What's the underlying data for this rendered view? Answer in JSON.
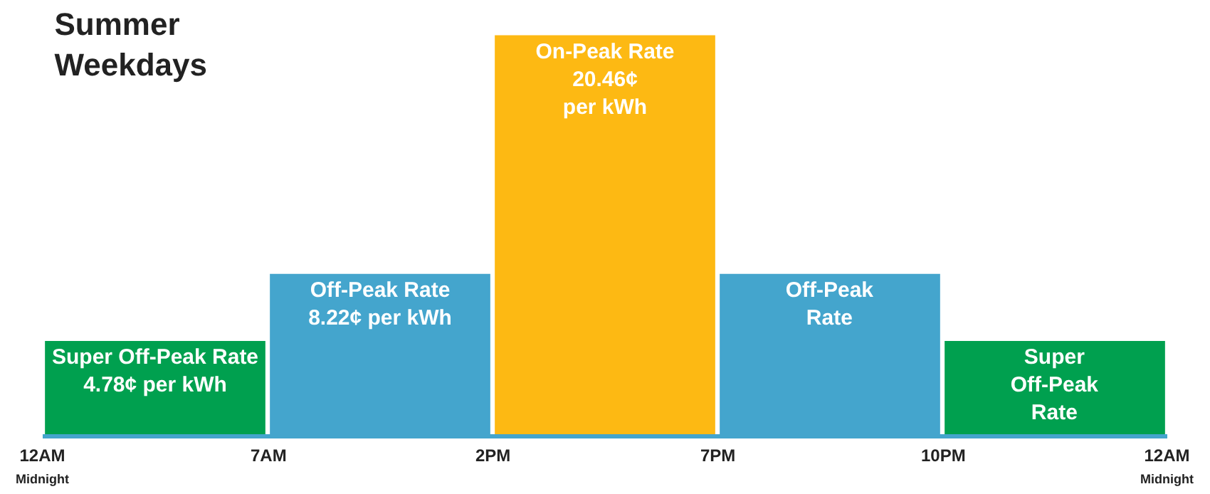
{
  "chart_data": {
    "type": "bar",
    "title": "Summer\nWeekdays",
    "categories": [
      null,
      null,
      null,
      null,
      null
    ],
    "values": [
      4.78,
      8.22,
      20.46,
      8.22,
      4.78
    ],
    "colors": [
      "#00a04f",
      "#44a5cd",
      "#fdb913",
      "#44a5cd",
      "#00a04f"
    ],
    "value_labels": [
      "Super Off-Peak Rate\n4.78¢ per kWh",
      "Off-Peak Rate\n8.22¢ per kWh",
      "On-Peak Rate\n20.46¢\nper kWh",
      "Off-Peak\nRate",
      "Super\nOff-Peak\nRate"
    ],
    "annotations": [
      "12AM\nMidnight",
      "7AM",
      "2PM",
      "7PM",
      "10PM",
      "12AM\nMidnight"
    ],
    "tick_labels": false,
    "legend": false
  }
}
